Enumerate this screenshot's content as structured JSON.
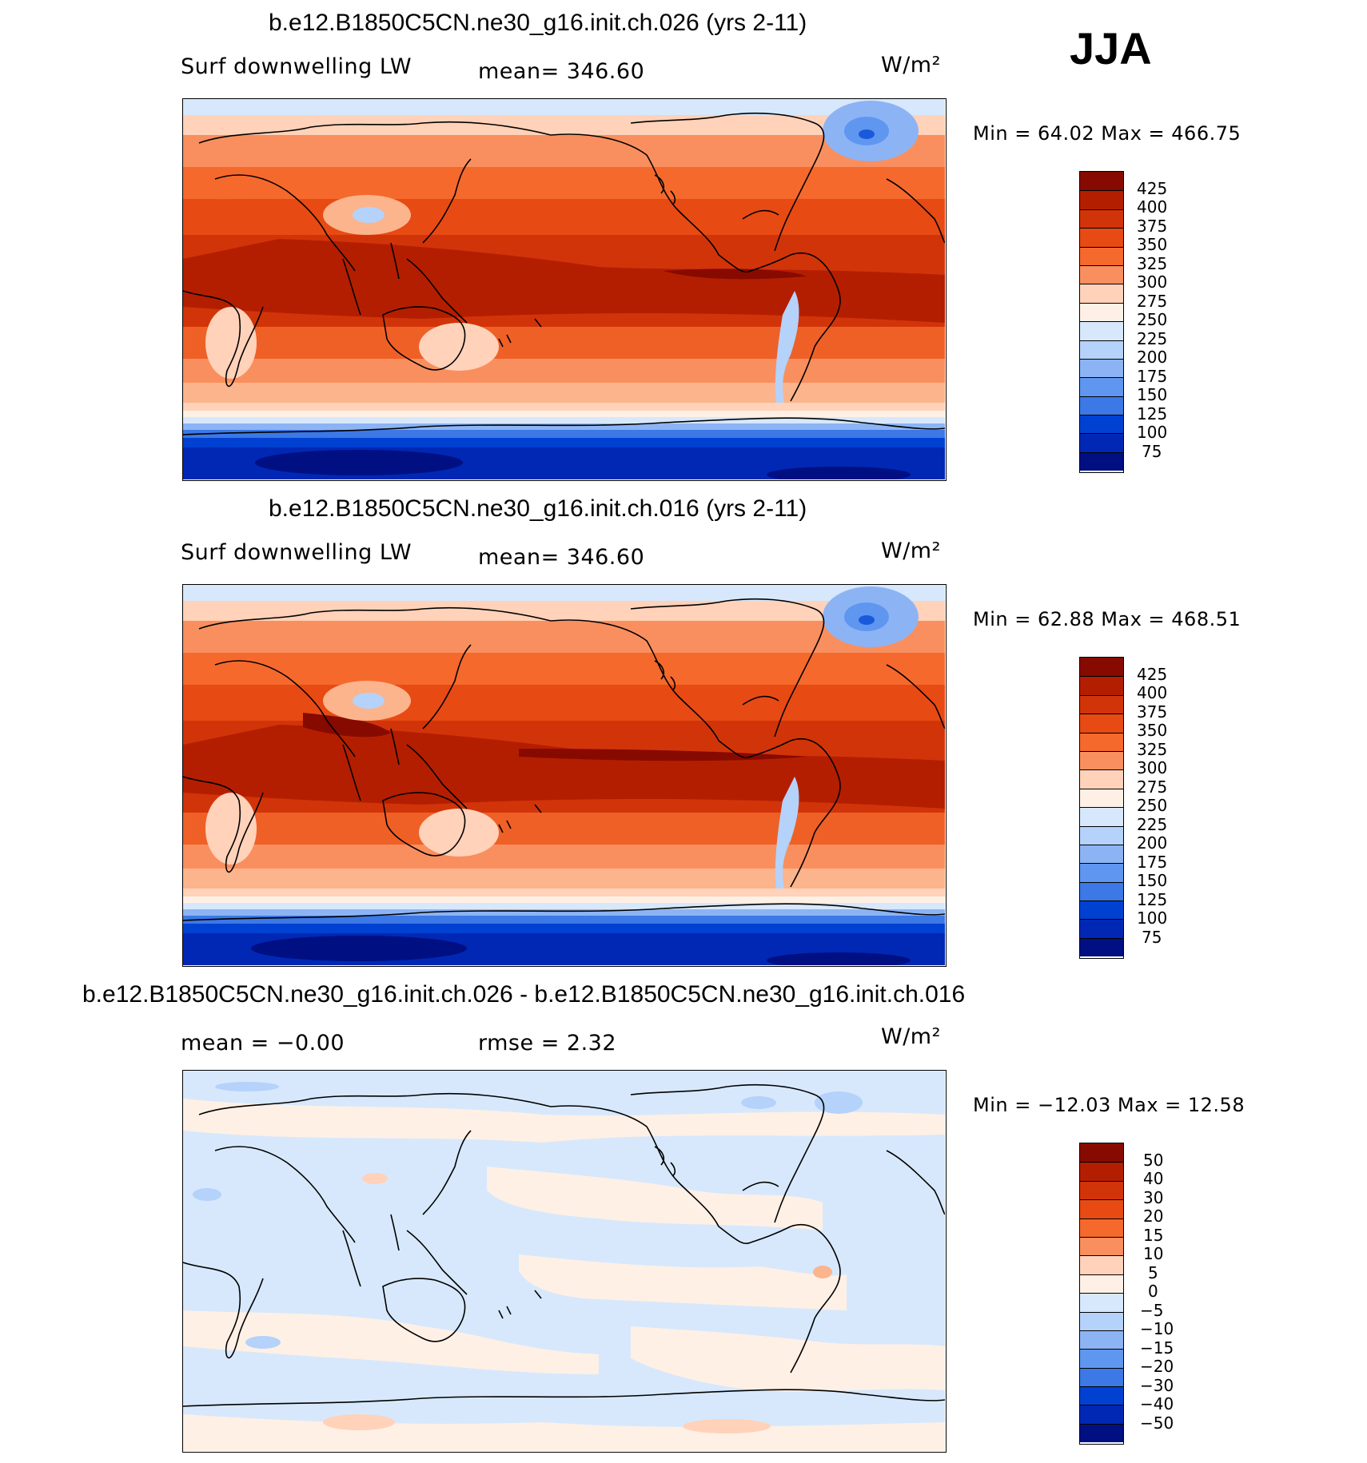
{
  "season": "JJA",
  "colors": {
    "warm_scale": [
      "#000f82",
      "#0028b4",
      "#0041d2",
      "#195adc",
      "#3c78e6",
      "#5f96f0",
      "#8cb4f5",
      "#b4d2fa",
      "#d7e8fc",
      "#fff0e6",
      "#ffd2b9",
      "#fbb48c",
      "#f98f5e",
      "#f5692d",
      "#e84a14",
      "#d2340a",
      "#b41e00",
      "#870a00"
    ],
    "diff_scale": [
      "#000f82",
      "#0028b4",
      "#0041d2",
      "#195adc",
      "#3c78e6",
      "#5f96f0",
      "#8cb4f5",
      "#b4d2fa",
      "#d7e8fc",
      "#fff0e6",
      "#ffd2b9",
      "#fbb48c",
      "#f98f5e",
      "#f5692d",
      "#e84a14",
      "#d2340a",
      "#b41e00",
      "#870a00"
    ]
  },
  "panels": [
    {
      "title": "b.e12.B1850C5CN.ne30_g16.init.ch.026 (yrs 2-11)",
      "left_label": "Surf downwelling LW",
      "center_label": "mean= 346.60",
      "units": "W/m²",
      "minmax": "Min =   64.02 Max = 466.75",
      "ticks": [
        "425",
        "400",
        "375",
        "350",
        "325",
        "300",
        "275",
        "250",
        "225",
        "200",
        "175",
        "150",
        "125",
        "100",
        "75"
      ]
    },
    {
      "title": "b.e12.B1850C5CN.ne30_g16.init.ch.016 (yrs 2-11)",
      "left_label": "Surf downwelling LW",
      "center_label": "mean= 346.60",
      "units": "W/m²",
      "minmax": "Min =   62.88 Max = 468.51",
      "ticks": [
        "425",
        "400",
        "375",
        "350",
        "325",
        "300",
        "275",
        "250",
        "225",
        "200",
        "175",
        "150",
        "125",
        "100",
        "75"
      ]
    },
    {
      "title": "b.e12.B1850C5CN.ne30_g16.init.ch.026 - b.e12.B1850C5CN.ne30_g16.init.ch.016",
      "left_label": "mean =   −0.00",
      "center_label": "rmse =    2.32",
      "units": "W/m²",
      "minmax": "Min = −12.03 Max =   12.58",
      "ticks": [
        "50",
        "40",
        "30",
        "20",
        "15",
        "10",
        "5",
        "0",
        "−5",
        "−10",
        "−15",
        "−20",
        "−30",
        "−40",
        "−50"
      ]
    }
  ]
}
